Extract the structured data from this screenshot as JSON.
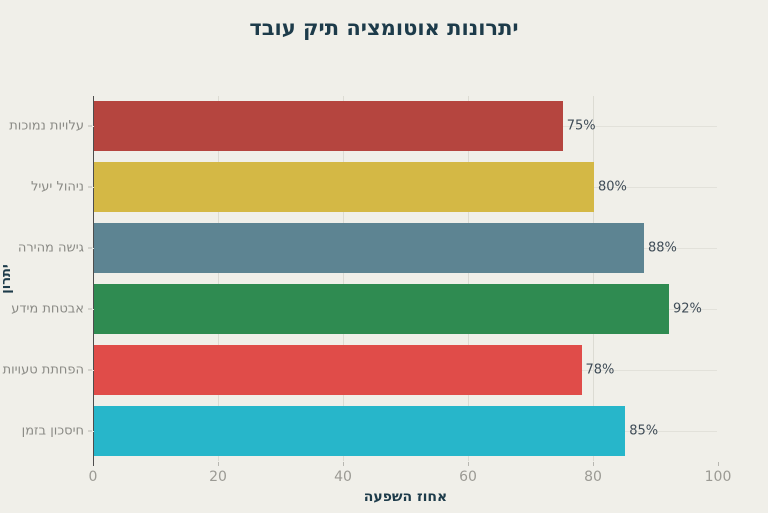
{
  "colors": {
    "background": "#f0efe9",
    "title_text": "#1d3b4a",
    "category_text": "#8a8a85",
    "tick_text": "#9b9a94",
    "value_text": "#3f4c57",
    "axis_spine": "#4d4d4d",
    "vertical_grid": "#dcdbd3",
    "horizontal_grid": "#e2e1da"
  },
  "chart_data": {
    "type": "bar",
    "orientation": "horizontal",
    "title": "יתרונות אוטומציה תיק עובד",
    "xlabel": "אחוז השפעה",
    "ylabel": "יתרון",
    "categories": [
      "עלויות נמוכות",
      "ניהול יעיל",
      "גישה מהירה",
      "אבטחת מידע",
      "הפחתת טעויות",
      "חיסכון בזמן"
    ],
    "values": [
      75,
      80,
      88,
      92,
      78,
      85
    ],
    "value_labels": [
      "75%",
      "80%",
      "88%",
      "92%",
      "78%",
      "85%"
    ],
    "bar_colors": [
      "#b5453f",
      "#d4b845",
      "#5d8492",
      "#2f8b51",
      "#e04c49",
      "#27b6ca"
    ],
    "xlim": [
      0,
      100
    ],
    "x_ticks": [
      0,
      20,
      40,
      60,
      80,
      100
    ],
    "grid": true,
    "legend": false
  }
}
